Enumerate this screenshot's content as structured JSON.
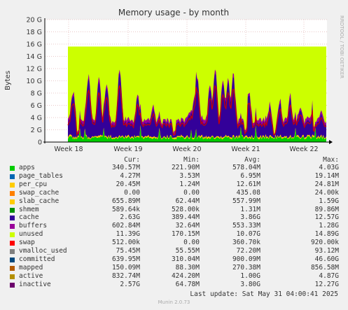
{
  "chart_data": {
    "type": "area",
    "title": "Memory usage - by month",
    "ylabel": "Bytes",
    "side_label": "RRDTOOL / TOBI OETIKER",
    "y_ticks": [
      "0",
      "2 G",
      "4 G",
      "6 G",
      "8 G",
      "10 G",
      "12 G",
      "14 G",
      "16 G",
      "18 G",
      "20 G"
    ],
    "ylim": [
      0,
      20
    ],
    "x_ticks": [
      "Week 18",
      "Week 19",
      "Week 20",
      "Week 21",
      "Week 22"
    ],
    "stacked": true,
    "grid": true,
    "unused_total_gb": 15.6,
    "columns": [
      "Cur:",
      "Min:",
      "Avg:",
      "Max:"
    ],
    "series": [
      {
        "name": "apps",
        "color": "#00cc00",
        "cur": "340.57M",
        "min": "221.90M",
        "avg": "578.04M",
        "max": "4.03G"
      },
      {
        "name": "page_tables",
        "color": "#0066b3",
        "cur": "4.27M",
        "min": "3.53M",
        "avg": "6.95M",
        "max": "19.14M"
      },
      {
        "name": "per_cpu",
        "color": "#ffcc00",
        "cur": "20.45M",
        "min": "1.24M",
        "avg": "12.61M",
        "max": "24.81M"
      },
      {
        "name": "swap_cache",
        "color": "#ff8000",
        "cur": "0.00",
        "min": "0.00",
        "avg": "435.08",
        "max": "24.00k"
      },
      {
        "name": "slab_cache",
        "color": "#ffcc00",
        "cur": "655.89M",
        "min": "62.44M",
        "avg": "557.99M",
        "max": "1.59G"
      },
      {
        "name": "shmem",
        "color": "#008f00",
        "cur": "589.64k",
        "min": "528.00k",
        "avg": "1.31M",
        "max": "89.86M"
      },
      {
        "name": "cache",
        "color": "#330099",
        "cur": "2.63G",
        "min": "389.44M",
        "avg": "3.86G",
        "max": "12.57G"
      },
      {
        "name": "buffers",
        "color": "#990099",
        "cur": "602.84M",
        "min": "32.64M",
        "avg": "553.33M",
        "max": "1.28G"
      },
      {
        "name": "unused",
        "color": "#ccff00",
        "cur": "11.39G",
        "min": "170.15M",
        "avg": "10.07G",
        "max": "14.89G"
      },
      {
        "name": "swap",
        "color": "#ff0000",
        "cur": "512.00k",
        "min": "0.00",
        "avg": "360.70k",
        "max": "920.00k"
      },
      {
        "name": "vmalloc_used",
        "color": "#808080",
        "cur": "75.45M",
        "min": "55.55M",
        "avg": "72.20M",
        "max": "93.12M"
      },
      {
        "name": "committed",
        "color": "#00487d",
        "cur": "639.95M",
        "min": "310.04M",
        "avg": "900.09M",
        "max": "46.60G"
      },
      {
        "name": "mapped",
        "color": "#b35a00",
        "cur": "150.09M",
        "min": "88.30M",
        "avg": "270.38M",
        "max": "856.58M"
      },
      {
        "name": "active",
        "color": "#b38f00",
        "cur": "832.74M",
        "min": "424.20M",
        "avg": "1.00G",
        "max": "4.87G"
      },
      {
        "name": "inactive",
        "color": "#6b006b",
        "cur": "2.57G",
        "min": "64.78M",
        "avg": "3.80G",
        "max": "12.27G"
      }
    ]
  },
  "footer": {
    "last_update": "Last update: Sat May 31 04:00:41 2025",
    "munin": "Munin 2.0.73"
  }
}
